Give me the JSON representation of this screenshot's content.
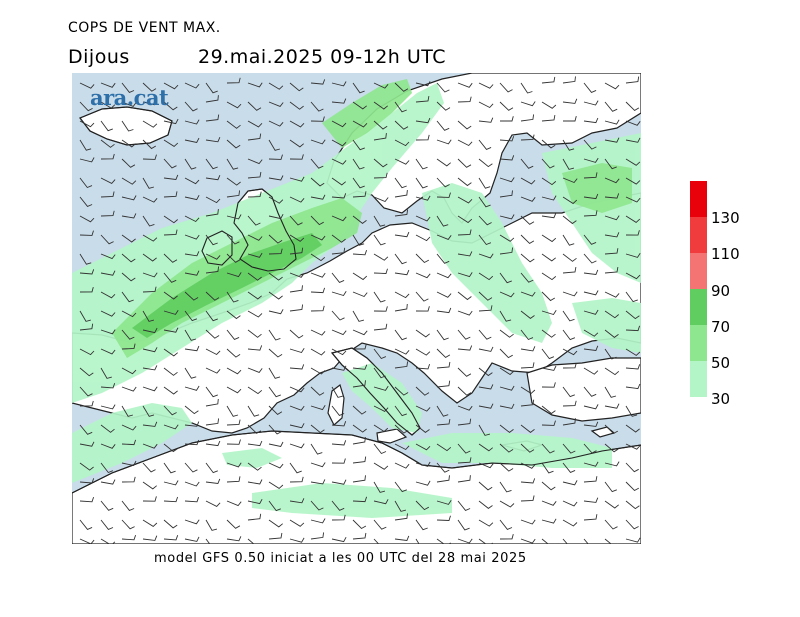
{
  "header": {
    "title": "COPS DE VENT MAX.",
    "day": "Dijous",
    "datetime": "29.mai.2025 09-12h UTC"
  },
  "map": {
    "logo": "ara.cat",
    "sea_color": "#c9dcea",
    "land_color": "#ffffff"
  },
  "legend": {
    "colors": [
      "#e8000b",
      "#f03c3c",
      "#f47373",
      "#5fcd5f",
      "#8ee68e",
      "#b4f5c8"
    ],
    "labels": [
      "130",
      "110",
      "90",
      "70",
      "50",
      "30"
    ]
  },
  "footer": {
    "text": "model GFS 0.50 iniciat a les 00 UTC del 28 mai 2025"
  }
}
